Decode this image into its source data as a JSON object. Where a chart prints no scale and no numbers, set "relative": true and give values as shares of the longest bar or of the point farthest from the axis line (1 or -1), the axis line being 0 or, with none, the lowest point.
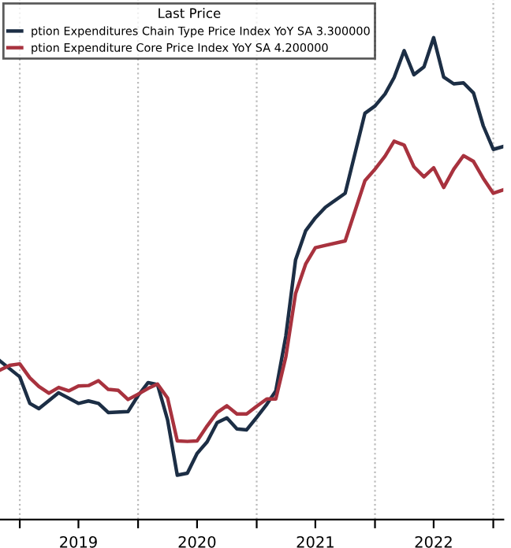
{
  "chart_data": {
    "type": "line",
    "relative": true,
    "legend_title": "Last Price",
    "legend": "top left",
    "grid": "x",
    "marker": "none",
    "line_style": "solid",
    "xlim": [
      "2018-11",
      "2023-02"
    ],
    "xticks": [
      {
        "value": "2019-01",
        "label": null
      },
      {
        "value": "2019-07",
        "label": "2019"
      },
      {
        "value": "2020-01",
        "label": null
      },
      {
        "value": "2020-07",
        "label": "2020"
      },
      {
        "value": "2021-01",
        "label": null
      },
      {
        "value": "2021-07",
        "label": "2021"
      },
      {
        "value": "2022-01",
        "label": null
      },
      {
        "value": "2022-07",
        "label": "2022"
      },
      {
        "value": "2023-01",
        "label": null
      }
    ],
    "series": [
      {
        "name": "ption Expenditures Chain Type Price Index YoY SA 3.300000",
        "color": "#1c2e45",
        "x": [
          "2018-11",
          "2019-01",
          "2019-02",
          "2019-03",
          "2019-05",
          "2019-07",
          "2019-08",
          "2019-09",
          "2019-10",
          "2019-12",
          "2020-01",
          "2020-02",
          "2020-03",
          "2020-04",
          "2020-05",
          "2020-06",
          "2020-07",
          "2020-08",
          "2020-09",
          "2020-10",
          "2020-11",
          "2020-12",
          "2021-01",
          "2021-02",
          "2021-03",
          "2021-04",
          "2021-05",
          "2021-06",
          "2021-07",
          "2021-08",
          "2021-10",
          "2021-12",
          "2022-01",
          "2022-02",
          "2022-03",
          "2022-04",
          "2022-05",
          "2022-06",
          "2022-07",
          "2022-08",
          "2022-09",
          "2022-10",
          "2022-11",
          "2022-12",
          "2023-01",
          "2023-02"
        ],
        "values": [
          0.329,
          0.296,
          0.241,
          0.23,
          0.263,
          0.241,
          0.246,
          0.241,
          0.222,
          0.224,
          0.257,
          0.284,
          0.28,
          0.207,
          0.092,
          0.096,
          0.137,
          0.161,
          0.201,
          0.211,
          0.188,
          0.186,
          0.212,
          0.239,
          0.267,
          0.381,
          0.539,
          0.599,
          0.626,
          0.648,
          0.677,
          0.843,
          0.858,
          0.883,
          0.917,
          0.973,
          0.923,
          0.939,
          1.0,
          0.918,
          0.904,
          0.906,
          0.885,
          0.817,
          0.768,
          0.774
        ]
      },
      {
        "name": "ption Expenditure Core Price Index YoY SA 4.200000",
        "color": "#a8323e",
        "x": [
          "2018-11",
          "2018-12",
          "2019-01",
          "2019-02",
          "2019-03",
          "2019-04",
          "2019-05",
          "2019-06",
          "2019-07",
          "2019-08",
          "2019-09",
          "2019-10",
          "2019-11",
          "2019-12",
          "2020-01",
          "2020-02",
          "2020-03",
          "2020-04",
          "2020-05",
          "2020-06",
          "2020-07",
          "2020-08",
          "2020-09",
          "2020-10",
          "2020-11",
          "2020-12",
          "2021-01",
          "2021-02",
          "2021-03",
          "2021-04",
          "2021-05",
          "2021-06",
          "2021-07",
          "2021-08",
          "2021-10",
          "2021-12",
          "2022-01",
          "2022-02",
          "2022-03",
          "2022-04",
          "2022-05",
          "2022-06",
          "2022-07",
          "2022-08",
          "2022-09",
          "2022-10",
          "2022-11",
          "2022-12",
          "2023-01",
          "2023-02"
        ],
        "values": [
          0.31,
          0.32,
          0.323,
          0.294,
          0.276,
          0.262,
          0.274,
          0.267,
          0.277,
          0.278,
          0.288,
          0.27,
          0.268,
          0.249,
          0.26,
          0.272,
          0.281,
          0.252,
          0.163,
          0.162,
          0.163,
          0.194,
          0.222,
          0.236,
          0.219,
          0.219,
          0.235,
          0.25,
          0.25,
          0.338,
          0.469,
          0.53,
          0.564,
          0.569,
          0.578,
          0.703,
          0.727,
          0.754,
          0.785,
          0.777,
          0.732,
          0.711,
          0.73,
          0.689,
          0.727,
          0.755,
          0.743,
          0.708,
          0.677,
          0.684
        ]
      }
    ]
  }
}
